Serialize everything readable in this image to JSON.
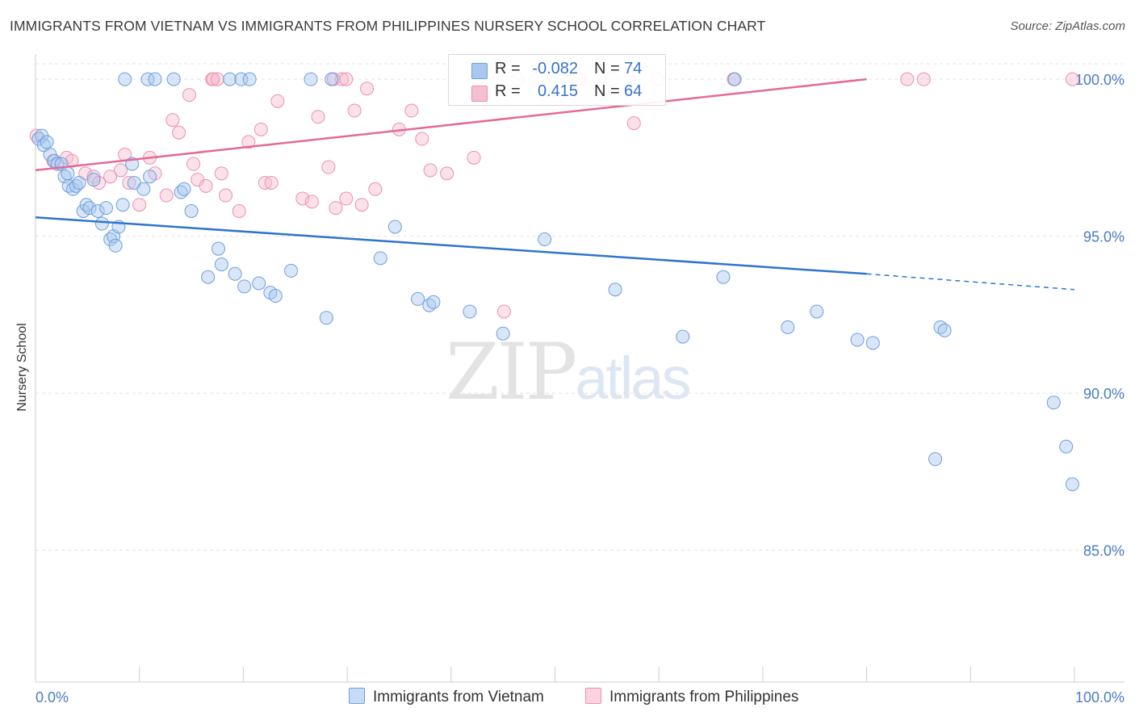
{
  "title": "IMMIGRANTS FROM VIETNAM VS IMMIGRANTS FROM PHILIPPINES NURSERY SCHOOL CORRELATION CHART",
  "source": "Source: ZipAtlas.com",
  "watermark": {
    "part1": "ZIP",
    "part2": "atlas"
  },
  "legend": {
    "series": [
      {
        "r_label": "R =",
        "r_value": "-0.082",
        "n_label": "N =",
        "n_value": "74"
      },
      {
        "r_label": "R =",
        "r_value": "0.415",
        "n_label": "N =",
        "n_value": "64"
      }
    ]
  },
  "bottom_legend": [
    "Immigrants from Vietnam",
    "Immigrants from Philippines"
  ],
  "colors": {
    "blue_fill": "#a9c8ef",
    "blue_stroke": "#6f9fdc",
    "blue_line": "#2f74d0",
    "blue_text": "#3a72c4",
    "pink_fill": "#f6bfd0",
    "pink_stroke": "#ec8fae",
    "pink_line": "#e46a95",
    "grid": "#e3e3e3",
    "axis_text": "#4a7cc4"
  },
  "chart_data": {
    "type": "scatter",
    "title": "IMMIGRANTS FROM VIETNAM VS IMMIGRANTS FROM PHILIPPINES NURSERY SCHOOL CORRELATION CHART",
    "xlabel": "",
    "ylabel": "Nursery School",
    "xlim": [
      0,
      100
    ],
    "ylim": [
      80.8,
      100.8
    ],
    "x_tick_labels": [
      "0.0%",
      "100.0%"
    ],
    "y_ticks": [
      85,
      90,
      95,
      100
    ],
    "y_tick_labels": [
      "85.0%",
      "90.0%",
      "95.0%",
      "100.0%"
    ],
    "grid": true,
    "legend_position": "top-center",
    "series": [
      {
        "name": "Immigrants from Vietnam",
        "r": -0.082,
        "n": 74,
        "trend": {
          "x": [
            0,
            80
          ],
          "y": [
            95.6,
            93.8
          ],
          "dashed_to_x": 100,
          "dashed_to_y": 93.3
        },
        "points": [
          [
            8.6,
            100
          ],
          [
            10.8,
            100
          ],
          [
            11.5,
            100
          ],
          [
            13.3,
            100
          ],
          [
            18.7,
            100
          ],
          [
            19.8,
            100
          ],
          [
            20.6,
            100
          ],
          [
            26.5,
            100
          ],
          [
            28.5,
            100
          ],
          [
            67.3,
            100
          ],
          [
            0.3,
            98.1
          ],
          [
            0.6,
            98.2
          ],
          [
            0.8,
            97.9
          ],
          [
            1.1,
            98.0
          ],
          [
            1.4,
            97.6
          ],
          [
            1.8,
            97.4
          ],
          [
            2.1,
            97.3
          ],
          [
            2.5,
            97.3
          ],
          [
            2.8,
            96.9
          ],
          [
            3.1,
            97.0
          ],
          [
            3.2,
            96.6
          ],
          [
            3.6,
            96.5
          ],
          [
            3.9,
            96.6
          ],
          [
            4.2,
            96.7
          ],
          [
            4.6,
            95.8
          ],
          [
            4.9,
            96.0
          ],
          [
            5.2,
            95.9
          ],
          [
            5.6,
            96.8
          ],
          [
            6.0,
            95.8
          ],
          [
            6.4,
            95.4
          ],
          [
            6.8,
            95.9
          ],
          [
            7.2,
            94.9
          ],
          [
            7.5,
            95.0
          ],
          [
            7.7,
            94.7
          ],
          [
            8.0,
            95.3
          ],
          [
            8.4,
            96.0
          ],
          [
            9.3,
            97.3
          ],
          [
            9.5,
            96.7
          ],
          [
            10.4,
            96.5
          ],
          [
            11.0,
            96.9
          ],
          [
            14.0,
            96.4
          ],
          [
            14.3,
            96.5
          ],
          [
            15.0,
            95.8
          ],
          [
            16.6,
            93.7
          ],
          [
            17.6,
            94.6
          ],
          [
            17.9,
            94.1
          ],
          [
            19.2,
            93.8
          ],
          [
            20.1,
            93.4
          ],
          [
            21.5,
            93.5
          ],
          [
            22.6,
            93.2
          ],
          [
            23.1,
            93.1
          ],
          [
            24.6,
            93.9
          ],
          [
            28.0,
            92.4
          ],
          [
            33.2,
            94.3
          ],
          [
            34.6,
            95.3
          ],
          [
            36.8,
            93.0
          ],
          [
            37.9,
            92.8
          ],
          [
            38.3,
            92.9
          ],
          [
            41.8,
            92.6
          ],
          [
            45.0,
            91.9
          ],
          [
            49.0,
            94.9
          ],
          [
            55.8,
            93.3
          ],
          [
            62.3,
            91.8
          ],
          [
            66.2,
            93.7
          ],
          [
            72.4,
            92.1
          ],
          [
            75.2,
            92.6
          ],
          [
            79.1,
            91.7
          ],
          [
            87.1,
            92.1
          ],
          [
            87.5,
            92.0
          ],
          [
            99.2,
            88.3
          ],
          [
            80.6,
            91.6
          ],
          [
            86.6,
            87.9
          ],
          [
            98.0,
            89.7
          ],
          [
            99.8,
            87.1
          ]
        ]
      },
      {
        "name": "Immigrants from Philippines",
        "r": 0.415,
        "n": 64,
        "trend": {
          "x": [
            0,
            80
          ],
          "y": [
            97.1,
            100.0
          ]
        },
        "points": [
          [
            17.0,
            100
          ],
          [
            17.1,
            100
          ],
          [
            17.5,
            100
          ],
          [
            28.7,
            100
          ],
          [
            29.5,
            100
          ],
          [
            29.9,
            100
          ],
          [
            42.5,
            100
          ],
          [
            46.4,
            100
          ],
          [
            48.2,
            100
          ],
          [
            52.5,
            100
          ],
          [
            99.8,
            100
          ],
          [
            83.9,
            100
          ],
          [
            85.5,
            100
          ],
          [
            67.2,
            100
          ],
          [
            59.9,
            100
          ],
          [
            52.3,
            100
          ],
          [
            55.5,
            100
          ],
          [
            0.1,
            98.2
          ],
          [
            1.7,
            97.4
          ],
          [
            3.0,
            97.5
          ],
          [
            3.5,
            97.4
          ],
          [
            4.8,
            97.0
          ],
          [
            5.6,
            96.9
          ],
          [
            6.1,
            96.7
          ],
          [
            7.2,
            96.9
          ],
          [
            8.2,
            97.1
          ],
          [
            8.6,
            97.6
          ],
          [
            9.0,
            96.7
          ],
          [
            10.0,
            96.0
          ],
          [
            11.0,
            97.5
          ],
          [
            11.5,
            97.0
          ],
          [
            12.6,
            96.3
          ],
          [
            13.2,
            98.7
          ],
          [
            13.8,
            98.3
          ],
          [
            14.8,
            99.5
          ],
          [
            15.2,
            97.3
          ],
          [
            15.6,
            96.8
          ],
          [
            16.4,
            96.6
          ],
          [
            17.9,
            97.0
          ],
          [
            18.3,
            96.3
          ],
          [
            19.6,
            95.8
          ],
          [
            20.5,
            98.0
          ],
          [
            21.7,
            98.4
          ],
          [
            22.1,
            96.7
          ],
          [
            22.7,
            96.7
          ],
          [
            23.3,
            99.3
          ],
          [
            25.7,
            96.2
          ],
          [
            26.6,
            96.1
          ],
          [
            27.2,
            98.8
          ],
          [
            28.2,
            97.2
          ],
          [
            28.9,
            95.9
          ],
          [
            29.9,
            96.2
          ],
          [
            30.7,
            99.0
          ],
          [
            31.4,
            96.0
          ],
          [
            31.9,
            99.7
          ],
          [
            32.7,
            96.5
          ],
          [
            35.0,
            98.4
          ],
          [
            36.2,
            99.0
          ],
          [
            37.2,
            98.1
          ],
          [
            38.0,
            97.1
          ],
          [
            39.6,
            97.0
          ],
          [
            42.2,
            97.5
          ],
          [
            45.1,
            92.6
          ],
          [
            57.6,
            98.6
          ]
        ]
      }
    ]
  }
}
